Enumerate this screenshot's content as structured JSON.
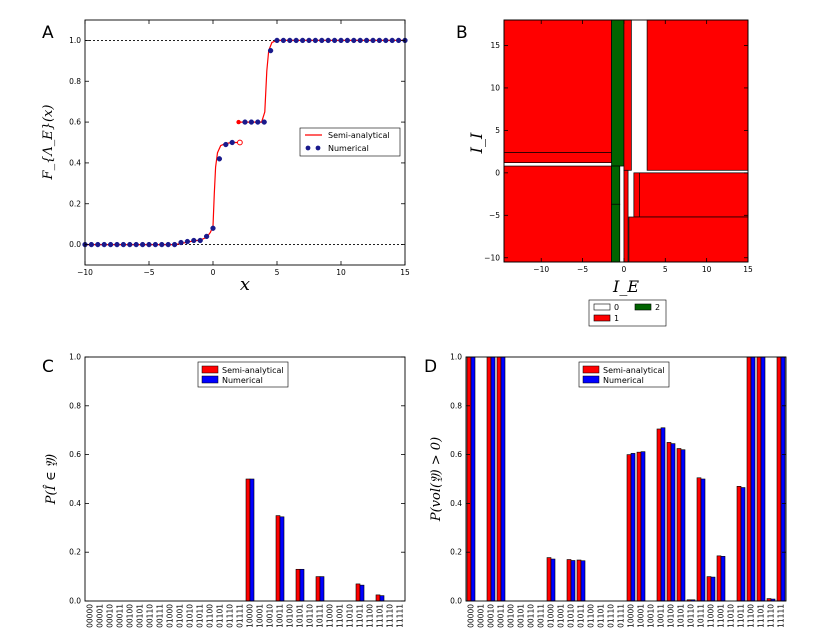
{
  "figure": {
    "panel_letters": [
      "A",
      "B",
      "C",
      "D"
    ]
  },
  "chart_data": [
    {
      "panel": "A",
      "type": "line",
      "xlabel": "x",
      "ylabel": "F_{Λ_E}(x)",
      "xlim": [
        -10,
        15
      ],
      "ylim": [
        -0.1,
        1.1
      ],
      "xticks": [
        -10,
        -5,
        0,
        5,
        10,
        15
      ],
      "yticks": [
        0.0,
        0.2,
        0.4,
        0.6,
        0.8,
        1.0
      ],
      "xtick_labels": [
        "−10",
        "−5",
        "0",
        "5",
        "10",
        "15"
      ],
      "ytick_labels": [
        "0.0",
        "0.2",
        "0.4",
        "0.6",
        "0.8",
        "1.0"
      ],
      "reference_lines": [
        0,
        1
      ],
      "legend": [
        "Semi-analytical",
        "Numerical"
      ],
      "series": [
        {
          "name": "Semi-analytical",
          "color": "#ff0000",
          "segments": [
            [
              [
                -10,
                0
              ],
              [
                -3,
                0
              ],
              [
                -2.5,
                0.005
              ],
              [
                -2,
                0.012
              ],
              [
                -1.5,
                0.018
              ],
              [
                -1,
                0.022
              ],
              [
                -0.5,
                0.035
              ],
              [
                -0.2,
                0.06
              ],
              [
                0,
                0.09
              ],
              [
                0.1,
                0.25
              ],
              [
                0.2,
                0.38
              ],
              [
                0.35,
                0.45
              ],
              [
                0.6,
                0.485
              ],
              [
                1,
                0.495
              ],
              [
                1.5,
                0.5
              ],
              [
                2,
                0.5
              ]
            ],
            [
              [
                2,
                0.6
              ],
              [
                3,
                0.6
              ],
              [
                3.8,
                0.6
              ],
              [
                4.05,
                0.65
              ],
              [
                4.2,
                0.85
              ],
              [
                4.35,
                0.95
              ],
              [
                4.6,
                0.99
              ],
              [
                5,
                1
              ],
              [
                15,
                1
              ]
            ]
          ],
          "open_markers": [
            [
              2.1,
              0.5
            ]
          ],
          "filled_markers": [
            [
              2,
              0.6
            ]
          ]
        },
        {
          "name": "Numerical",
          "color": "#1a1a8c",
          "x": [
            -10,
            -9.5,
            -9,
            -8.5,
            -8,
            -7.5,
            -7,
            -6.5,
            -6,
            -5.5,
            -5,
            -4.5,
            -4,
            -3.5,
            -3,
            -2.5,
            -2,
            -1.5,
            -1,
            -0.5,
            0,
            0.5,
            1,
            1.5,
            2.5,
            3,
            3.5,
            4,
            4.5,
            5,
            5.5,
            6,
            6.5,
            7,
            7.5,
            8,
            8.5,
            9,
            9.5,
            10,
            10.5,
            11,
            11.5,
            12,
            12.5,
            13,
            13.5,
            14,
            14.5,
            15
          ],
          "y": [
            0,
            0,
            0,
            0,
            0,
            0,
            0,
            0,
            0,
            0,
            0,
            0,
            0,
            0,
            0,
            0.01,
            0.015,
            0.02,
            0.02,
            0.04,
            0.08,
            0.42,
            0.49,
            0.5,
            0.6,
            0.6,
            0.6,
            0.6,
            0.95,
            1,
            1,
            1,
            1,
            1,
            1,
            1,
            1,
            1,
            1,
            1,
            1,
            1,
            1,
            1,
            1,
            1,
            1,
            1,
            1,
            1
          ]
        }
      ]
    },
    {
      "panel": "B",
      "type": "heatmap",
      "xlabel": "I_E",
      "ylabel": "I_I",
      "xlim": [
        -14.5,
        15
      ],
      "ylim": [
        -10.5,
        18
      ],
      "xticks": [
        -10,
        -5,
        0,
        5,
        10,
        15
      ],
      "yticks": [
        -10,
        -5,
        0,
        5,
        10,
        15
      ],
      "xtick_labels": [
        "−10",
        "−5",
        "0",
        "5",
        "10",
        "15"
      ],
      "ytick_labels": [
        "−10",
        "−5",
        "0",
        "5",
        "10",
        "15"
      ],
      "legend": [
        {
          "label": "0",
          "color": "#ffffff"
        },
        {
          "label": "1",
          "color": "#ff0000"
        },
        {
          "label": "2",
          "color": "#006400"
        }
      ],
      "regions": [
        {
          "x": [
            -14.5,
            -1.5
          ],
          "y": [
            2.4,
            18
          ],
          "value": 1
        },
        {
          "x": [
            -14.5,
            -1.5
          ],
          "y": [
            1.2,
            2.4
          ],
          "value": 1
        },
        {
          "x": [
            -14.5,
            -1.5
          ],
          "y": [
            -10.5,
            0.8
          ],
          "value": 1
        },
        {
          "x": [
            -1.5,
            0
          ],
          "y": [
            0.8,
            18
          ],
          "value": 2
        },
        {
          "x": [
            -1.5,
            -0.5
          ],
          "y": [
            -3.7,
            0.8
          ],
          "value": 2
        },
        {
          "x": [
            -1.5,
            -0.5
          ],
          "y": [
            -10.5,
            -3.7
          ],
          "value": 2
        },
        {
          "x": [
            0,
            0.9
          ],
          "y": [
            0.3,
            18
          ],
          "value": 1
        },
        {
          "x": [
            0,
            0.5
          ],
          "y": [
            -10.5,
            0.3
          ],
          "value": 1
        },
        {
          "x": [
            2.8,
            15
          ],
          "y": [
            0.3,
            18
          ],
          "value": 1
        },
        {
          "x": [
            1.2,
            15
          ],
          "y": [
            -5.2,
            0
          ],
          "value": 1
        },
        {
          "x": [
            1.9,
            15
          ],
          "y": [
            -5.2,
            0
          ],
          "value": 1
        },
        {
          "x": [
            0.6,
            15
          ],
          "y": [
            -10.5,
            -5.2
          ],
          "value": 1
        }
      ]
    },
    {
      "panel": "C",
      "type": "bar",
      "ylabel": "P(Î ∈ 𝔜)",
      "ylim": [
        0,
        1.0
      ],
      "yticks": [
        0.0,
        0.2,
        0.4,
        0.6,
        0.8,
        1.0
      ],
      "ytick_labels": [
        "0.0",
        "0.2",
        "0.4",
        "0.6",
        "0.8",
        "1.0"
      ],
      "categories": [
        "00000",
        "00001",
        "00010",
        "00011",
        "00100",
        "00101",
        "00110",
        "00111",
        "01000",
        "01001",
        "01010",
        "01011",
        "01100",
        "01101",
        "01110",
        "01111",
        "10000",
        "10001",
        "10010",
        "10011",
        "10100",
        "10101",
        "10110",
        "10111",
        "11000",
        "11001",
        "11010",
        "11011",
        "11100",
        "11101",
        "11110",
        "11111"
      ],
      "series": [
        {
          "name": "Semi-analytical",
          "color": "#ff0000",
          "values": [
            0,
            0,
            0,
            0,
            0,
            0,
            0,
            0,
            0,
            0,
            0,
            0,
            0,
            0,
            0,
            0,
            0.5,
            0,
            0,
            0.35,
            0,
            0.13,
            0,
            0.1,
            0,
            0,
            0,
            0.07,
            0,
            0.025,
            0,
            0
          ]
        },
        {
          "name": "Numerical",
          "color": "#0000ff",
          "values": [
            0,
            0,
            0,
            0,
            0,
            0,
            0,
            0,
            0,
            0,
            0,
            0,
            0,
            0,
            0,
            0,
            0.5,
            0,
            0,
            0.345,
            0,
            0.13,
            0,
            0.1,
            0,
            0,
            0,
            0.065,
            0,
            0.022,
            0,
            0
          ]
        }
      ]
    },
    {
      "panel": "D",
      "type": "bar",
      "ylabel": "P(vol(𝔜) > 0)",
      "ylim": [
        0,
        1.0
      ],
      "yticks": [
        0.0,
        0.2,
        0.4,
        0.6,
        0.8,
        1.0
      ],
      "ytick_labels": [
        "0.0",
        "0.2",
        "0.4",
        "0.6",
        "0.8",
        "1.0"
      ],
      "categories": [
        "00000",
        "00001",
        "00010",
        "00011",
        "00100",
        "00101",
        "00110",
        "00111",
        "01000",
        "01001",
        "01010",
        "01011",
        "01100",
        "01101",
        "01110",
        "01111",
        "10000",
        "10001",
        "10010",
        "10011",
        "10100",
        "10101",
        "10110",
        "10111",
        "11000",
        "11001",
        "11010",
        "11011",
        "11100",
        "11101",
        "11110",
        "11111"
      ],
      "series": [
        {
          "name": "Semi-analytical",
          "color": "#ff0000",
          "values": [
            1.0,
            0,
            1.0,
            1.0,
            0,
            0,
            0,
            0,
            0.178,
            0,
            0.17,
            0.168,
            0,
            0,
            0,
            0,
            0.6,
            0.61,
            0,
            0.705,
            0.65,
            0.625,
            0.005,
            0.505,
            0.1,
            0.185,
            0,
            0.47,
            1.0,
            1.0,
            0.01,
            1.0
          ]
        },
        {
          "name": "Numerical",
          "color": "#0000ff",
          "values": [
            1.0,
            0,
            1.0,
            1.0,
            0,
            0,
            0,
            0,
            0.172,
            0,
            0.166,
            0.165,
            0,
            0,
            0,
            0,
            0.605,
            0.612,
            0,
            0.71,
            0.645,
            0.62,
            0.005,
            0.5,
            0.098,
            0.183,
            0,
            0.465,
            1.0,
            1.0,
            0.008,
            1.0
          ]
        }
      ]
    }
  ]
}
